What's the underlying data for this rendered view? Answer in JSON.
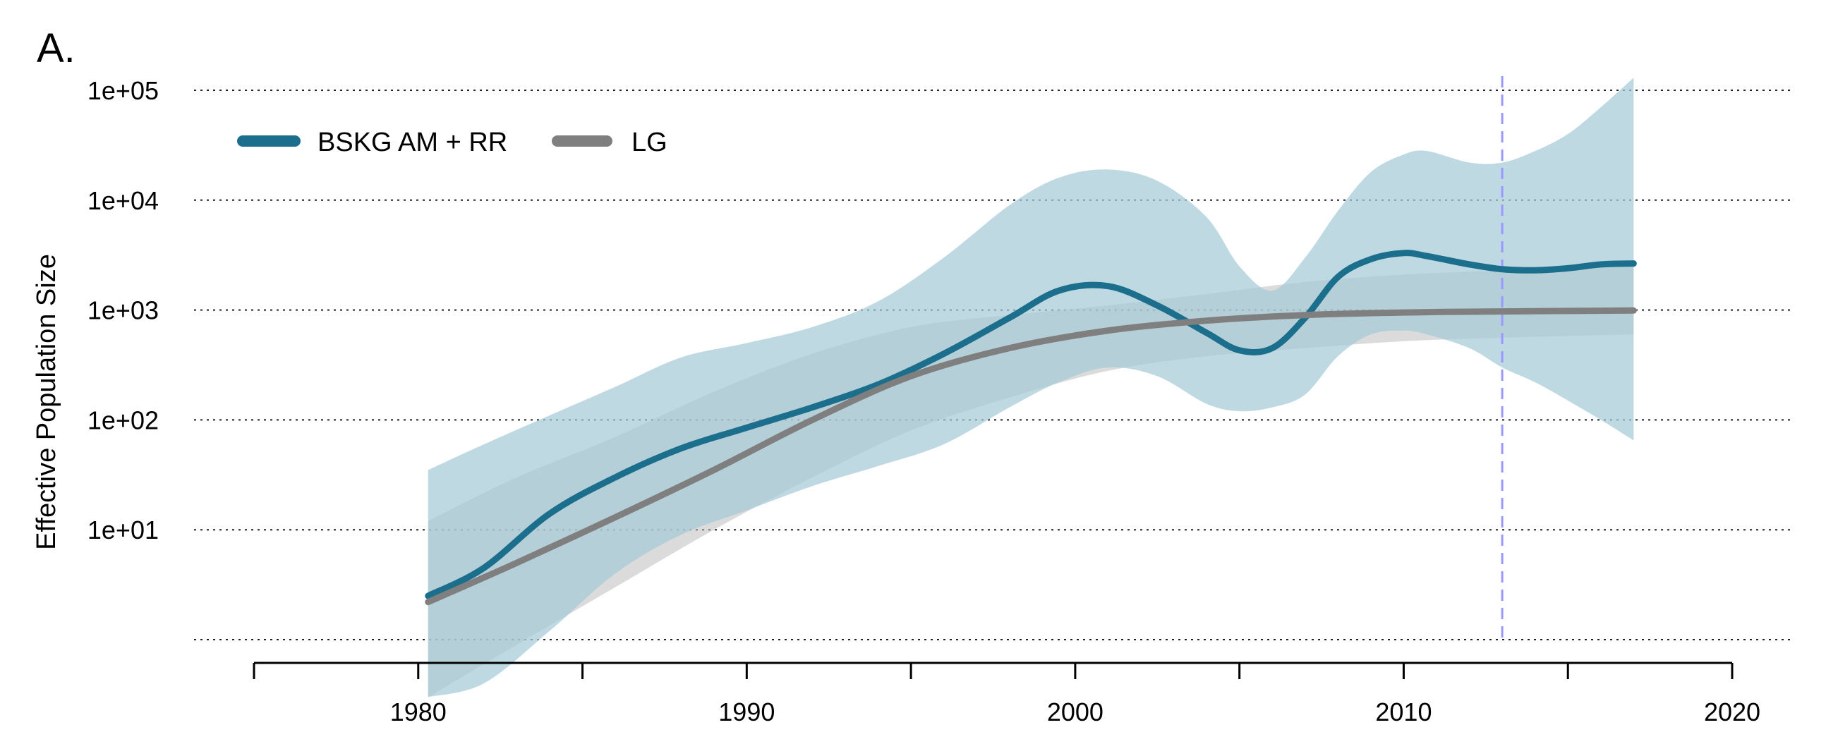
{
  "panel_label": "A.",
  "chart_data": {
    "type": "line",
    "title": "",
    "xlabel": "",
    "ylabel": "Effective Population Size",
    "yscale": "log10",
    "xlim": [
      1975,
      2020
    ],
    "ylim": [
      1,
      100000
    ],
    "xticks": [
      1980,
      1990,
      2000,
      2010,
      2020
    ],
    "xtick_positions": [
      1975,
      1980,
      1985,
      1990,
      1995,
      2000,
      2005,
      2010,
      2015,
      2020
    ],
    "yticks": [
      {
        "value": 1,
        "label": ""
      },
      {
        "value": 10,
        "label": "1e+01"
      },
      {
        "value": 100,
        "label": "1e+02"
      },
      {
        "value": 1000,
        "label": "1e+03"
      },
      {
        "value": 10000,
        "label": "1e+04"
      },
      {
        "value": 100000,
        "label": "1e+05"
      }
    ],
    "grid": "horizontal dotted",
    "reference_line": {
      "x": 2013,
      "style": "dashed",
      "color": "#9999ff"
    },
    "legend": {
      "position": "top-left"
    },
    "series": [
      {
        "name": "BSKG AM + RR",
        "color": "#1c6f8c",
        "band_color": "#a6cbd8",
        "x": [
          1980.3,
          1982,
          1984,
          1986,
          1988,
          1990,
          1992,
          1994,
          1996,
          1998,
          1999.5,
          2001,
          2002.5,
          2004,
          2005,
          2006,
          2007,
          2008,
          2009,
          2010,
          2010.7,
          2012,
          2013,
          2014,
          2015,
          2016,
          2017
        ],
        "values": [
          2.5,
          4.5,
          14,
          30,
          55,
          85,
          130,
          210,
          400,
          850,
          1500,
          1650,
          1100,
          620,
          430,
          450,
          850,
          2000,
          2900,
          3300,
          3100,
          2600,
          2350,
          2300,
          2400,
          2600,
          2650
        ],
        "lower": [
          0.3,
          0.4,
          1.2,
          4,
          9,
          15,
          25,
          38,
          60,
          130,
          220,
          300,
          250,
          140,
          120,
          130,
          170,
          380,
          600,
          650,
          600,
          450,
          300,
          220,
          150,
          100,
          65
        ],
        "upper": [
          35,
          60,
          110,
          200,
          370,
          500,
          700,
          1200,
          3000,
          9000,
          16000,
          19000,
          15000,
          7000,
          2500,
          1500,
          3000,
          8000,
          18000,
          26000,
          28000,
          22000,
          22000,
          28000,
          40000,
          70000,
          130000
        ]
      },
      {
        "name": "LG",
        "color": "#7f7f7f",
        "band_color": "#bdbdbd",
        "x": [
          1980.3,
          1983,
          1986,
          1989,
          1992,
          1995,
          1998,
          2001,
          2004,
          2007,
          2010,
          2013,
          2017
        ],
        "values": [
          2.2,
          5,
          13,
          35,
          100,
          250,
          450,
          650,
          800,
          900,
          950,
          970,
          990
        ],
        "lower": [
          0.3,
          0.9,
          3,
          10,
          30,
          80,
          160,
          280,
          380,
          450,
          520,
          560,
          600
        ],
        "upper": [
          12,
          30,
          70,
          180,
          400,
          700,
          900,
          1100,
          1400,
          1800,
          2100,
          2300,
          2600
        ]
      }
    ]
  }
}
